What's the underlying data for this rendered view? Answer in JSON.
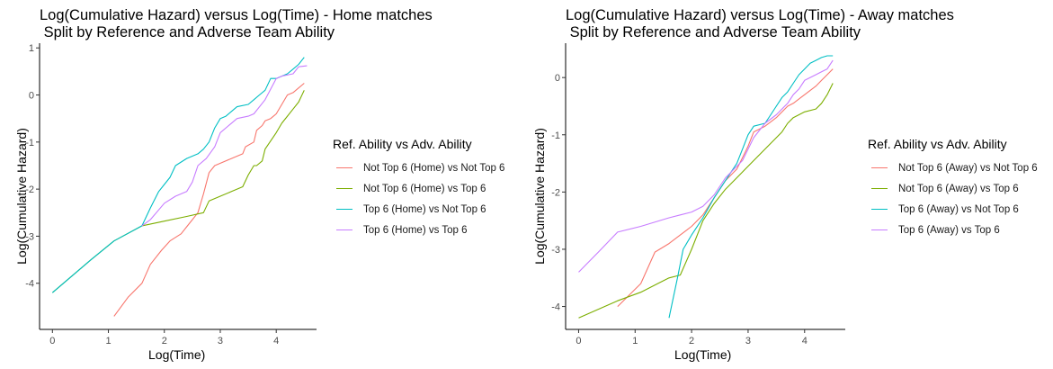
{
  "chart_data": [
    {
      "type": "line",
      "title": "Log(Cumulative Hazard) versus Log(Time) - Home matches\n Split by Reference and Adverse Team Ability",
      "xlabel": "Log(Time)",
      "ylabel": "Log(Cumulative Hazard)",
      "xlim": [
        -0.23,
        4.72
      ],
      "ylim": [
        -4.98,
        1.1
      ],
      "xticks": [
        0,
        1,
        2,
        3,
        4
      ],
      "yticks": [
        -4,
        -3,
        -2,
        -1,
        0,
        1
      ],
      "grid": false,
      "legend": {
        "title": "Ref. Ability vs Adv. Ability",
        "position": "right"
      },
      "series": [
        {
          "name": "Not Top 6 (Home) vs Not Top 6",
          "color": "#F8766D",
          "x": [
            1.1,
            1.35,
            1.6,
            1.75,
            1.95,
            2.1,
            2.3,
            2.4,
            2.5,
            2.6,
            2.7,
            2.8,
            2.9,
            3.0,
            3.2,
            3.4,
            3.45,
            3.6,
            3.65,
            3.75,
            3.8,
            3.9,
            4.0,
            4.1,
            4.2,
            4.3,
            4.4,
            4.5
          ],
          "y": [
            -4.7,
            -4.3,
            -4.0,
            -3.6,
            -3.3,
            -3.1,
            -2.95,
            -2.8,
            -2.65,
            -2.5,
            -2.1,
            -1.65,
            -1.5,
            -1.45,
            -1.35,
            -1.25,
            -1.1,
            -1.0,
            -0.75,
            -0.65,
            -0.55,
            -0.5,
            -0.4,
            -0.2,
            0.0,
            0.05,
            0.15,
            0.25
          ]
        },
        {
          "name": "Not Top 6 (Home) vs Top 6",
          "color": "#7CAE00",
          "x": [
            0.0,
            0.69,
            1.1,
            1.6,
            2.0,
            2.4,
            2.7,
            2.8,
            3.0,
            3.2,
            3.4,
            3.5,
            3.6,
            3.65,
            3.75,
            3.8,
            4.0,
            4.1,
            4.2,
            4.3,
            4.4,
            4.5
          ],
          "y": [
            -4.2,
            -3.5,
            -3.1,
            -2.78,
            -2.68,
            -2.58,
            -2.5,
            -2.25,
            -2.15,
            -2.05,
            -1.95,
            -1.7,
            -1.5,
            -1.5,
            -1.4,
            -1.15,
            -0.8,
            -0.6,
            -0.45,
            -0.3,
            -0.15,
            0.1
          ]
        },
        {
          "name": "Top 6 (Home) vs Not Top 6",
          "color": "#00BFC4",
          "x": [
            0.0,
            0.69,
            1.1,
            1.6,
            1.75,
            1.9,
            2.0,
            2.1,
            2.2,
            2.4,
            2.6,
            2.7,
            2.8,
            2.9,
            3.0,
            3.1,
            3.2,
            3.3,
            3.5,
            3.6,
            3.7,
            3.8,
            3.9,
            4.0,
            4.1,
            4.2,
            4.3,
            4.4,
            4.5
          ],
          "y": [
            -4.2,
            -3.5,
            -3.1,
            -2.78,
            -2.4,
            -2.05,
            -1.9,
            -1.75,
            -1.5,
            -1.35,
            -1.25,
            -1.15,
            -1.0,
            -0.7,
            -0.5,
            -0.45,
            -0.35,
            -0.25,
            -0.2,
            -0.1,
            0.0,
            0.1,
            0.35,
            0.35,
            0.4,
            0.45,
            0.55,
            0.65,
            0.8
          ]
        },
        {
          "name": "Top 6 (Home) vs Top 6",
          "color": "#C77CFF",
          "x": [
            1.6,
            1.75,
            2.0,
            2.2,
            2.4,
            2.5,
            2.6,
            2.75,
            2.9,
            3.0,
            3.2,
            3.3,
            3.5,
            3.6,
            3.8,
            4.0,
            4.1,
            4.3,
            4.4,
            4.55
          ],
          "y": [
            -2.78,
            -2.65,
            -2.3,
            -2.15,
            -2.05,
            -1.85,
            -1.5,
            -1.35,
            -1.1,
            -0.8,
            -0.6,
            -0.5,
            -0.45,
            -0.4,
            -0.1,
            0.35,
            0.4,
            0.45,
            0.6,
            0.62
          ]
        }
      ]
    },
    {
      "type": "line",
      "title": "Log(Cumulative Hazard) versus Log(Time) - Away matches\n Split by Reference and Adverse Team Ability",
      "xlabel": "Log(Time)",
      "ylabel": "Log(Cumulative Hazard)",
      "xlim": [
        -0.23,
        4.72
      ],
      "ylim": [
        -4.4,
        0.6
      ],
      "xticks": [
        0,
        1,
        2,
        3,
        4
      ],
      "yticks": [
        -4,
        -3,
        -2,
        -1,
        0
      ],
      "grid": false,
      "legend": {
        "title": "Ref. Ability vs Adv. Ability",
        "position": "right"
      },
      "series": [
        {
          "name": "Not Top 6 (Away) vs Not Top 6",
          "color": "#F8766D",
          "x": [
            0.69,
            1.1,
            1.35,
            1.6,
            1.8,
            2.0,
            2.2,
            2.4,
            2.6,
            2.8,
            2.9,
            3.0,
            3.1,
            3.3,
            3.5,
            3.7,
            3.8,
            4.0,
            4.2,
            4.3,
            4.4,
            4.5
          ],
          "y": [
            -4.0,
            -3.6,
            -3.05,
            -2.9,
            -2.75,
            -2.6,
            -2.4,
            -2.1,
            -1.8,
            -1.6,
            -1.4,
            -1.2,
            -0.95,
            -0.85,
            -0.7,
            -0.5,
            -0.45,
            -0.3,
            -0.15,
            -0.05,
            0.05,
            0.15
          ]
        },
        {
          "name": "Not Top 6 (Away) vs Top 6",
          "color": "#7CAE00",
          "x": [
            0.0,
            0.69,
            1.1,
            1.4,
            1.6,
            1.8,
            2.0,
            2.2,
            2.4,
            2.6,
            2.8,
            3.0,
            3.2,
            3.4,
            3.6,
            3.7,
            3.8,
            4.0,
            4.2,
            4.3,
            4.4,
            4.5
          ],
          "y": [
            -4.2,
            -3.9,
            -3.75,
            -3.6,
            -3.5,
            -3.45,
            -3.0,
            -2.5,
            -2.2,
            -1.95,
            -1.75,
            -1.55,
            -1.35,
            -1.15,
            -0.95,
            -0.8,
            -0.7,
            -0.6,
            -0.55,
            -0.45,
            -0.3,
            -0.1
          ]
        },
        {
          "name": "Top 6 (Away) vs Not Top 6",
          "color": "#00BFC4",
          "x": [
            1.6,
            1.75,
            1.85,
            2.0,
            2.2,
            2.4,
            2.6,
            2.8,
            2.9,
            3.0,
            3.1,
            3.3,
            3.4,
            3.5,
            3.6,
            3.7,
            3.8,
            3.9,
            4.0,
            4.1,
            4.2,
            4.3,
            4.4,
            4.5
          ],
          "y": [
            -4.2,
            -3.5,
            -3.0,
            -2.75,
            -2.45,
            -2.1,
            -1.8,
            -1.5,
            -1.25,
            -1.0,
            -0.85,
            -0.8,
            -0.65,
            -0.5,
            -0.35,
            -0.25,
            -0.1,
            0.05,
            0.15,
            0.25,
            0.3,
            0.35,
            0.38,
            0.38
          ]
        },
        {
          "name": "Top 6 (Away) vs Top 6",
          "color": "#C77CFF",
          "x": [
            0.0,
            0.35,
            0.69,
            1.1,
            1.6,
            1.8,
            2.0,
            2.2,
            2.4,
            2.6,
            2.8,
            2.9,
            3.0,
            3.1,
            3.3,
            3.5,
            3.7,
            3.8,
            3.9,
            4.0,
            4.2,
            4.3,
            4.4,
            4.5
          ],
          "y": [
            -3.4,
            -3.05,
            -2.7,
            -2.6,
            -2.45,
            -2.4,
            -2.35,
            -2.25,
            -2.05,
            -1.75,
            -1.55,
            -1.45,
            -1.25,
            -1.05,
            -0.8,
            -0.65,
            -0.45,
            -0.3,
            -0.2,
            -0.05,
            0.05,
            0.1,
            0.15,
            0.3
          ]
        }
      ]
    }
  ]
}
